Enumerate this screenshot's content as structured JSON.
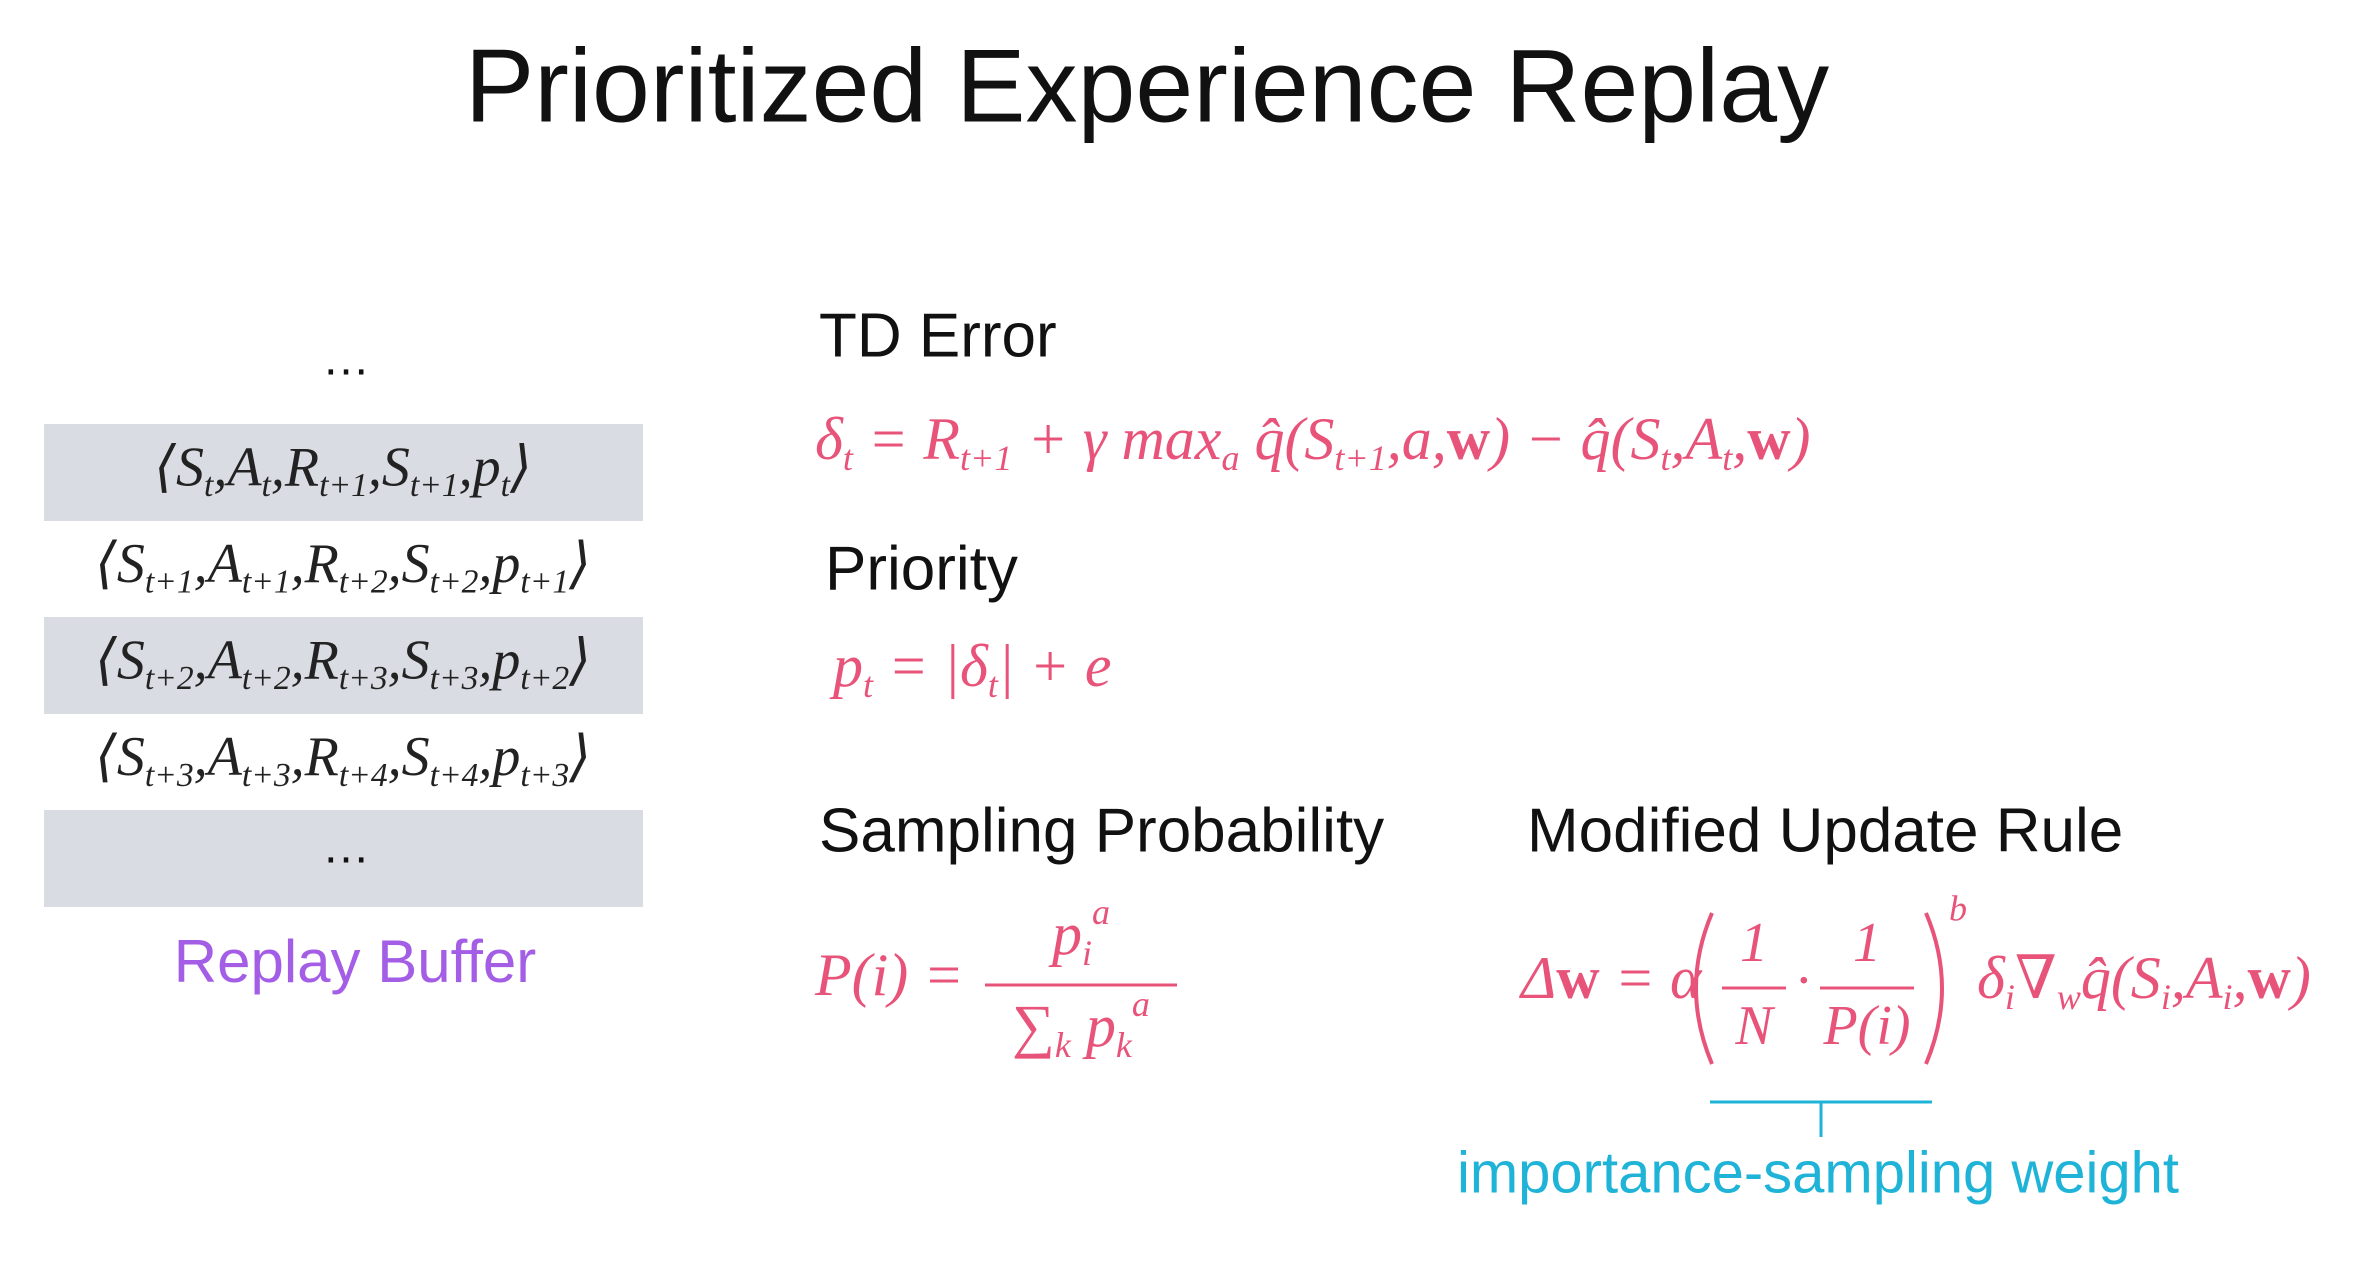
{
  "title": "Prioritized Experience Replay",
  "buffer": {
    "dots_top": "…",
    "rows": [
      [
        {
          "text": "⟨S",
          "sub": "t"
        },
        {
          "text": ",A",
          "sub": "t"
        },
        {
          "text": ",R",
          "sub": "t+1"
        },
        {
          "text": ",S",
          "sub": "t+1"
        },
        {
          "text": ",p",
          "sub": "t"
        },
        {
          "text": "⟩"
        }
      ],
      [
        {
          "text": "⟨S",
          "sub": "t+1"
        },
        {
          "text": ",A",
          "sub": "t+1"
        },
        {
          "text": ",R",
          "sub": "t+2"
        },
        {
          "text": ",S",
          "sub": "t+2"
        },
        {
          "text": ",p",
          "sub": "t+1"
        },
        {
          "text": "⟩"
        }
      ],
      [
        {
          "text": "⟨S",
          "sub": "t+2"
        },
        {
          "text": ",A",
          "sub": "t+2"
        },
        {
          "text": ",R",
          "sub": "t+3"
        },
        {
          "text": ",S",
          "sub": "t+3"
        },
        {
          "text": ",p",
          "sub": "t+2"
        },
        {
          "text": "⟩"
        }
      ],
      [
        {
          "text": "⟨S",
          "sub": "t+3"
        },
        {
          "text": ",A",
          "sub": "t+3"
        },
        {
          "text": ",R",
          "sub": "t+4"
        },
        {
          "text": ",S",
          "sub": "t+4"
        },
        {
          "text": ",p",
          "sub": "t+3"
        },
        {
          "text": "⟩"
        }
      ]
    ],
    "last_row": "…",
    "label": "Replay Buffer"
  },
  "td_error": {
    "heading": "TD Error",
    "formula": [
      {
        "text": "δ",
        "sub": "t"
      },
      {
        "text": " = R",
        "sub": "t+1"
      },
      {
        "text": " + γ max",
        "sub": "a"
      },
      {
        "text": " q̂(S",
        "sub": "t+1"
      },
      {
        "text": ",a,"
      },
      {
        "text": "w",
        "bold": true
      },
      {
        "text": ") − q̂(S",
        "sub": "t"
      },
      {
        "text": ",A",
        "sub": "t"
      },
      {
        "text": ","
      },
      {
        "text": "w",
        "bold": true
      },
      {
        "text": ")"
      }
    ]
  },
  "priority": {
    "heading": "Priority",
    "formula": [
      {
        "text": "p",
        "sub": "t"
      },
      {
        "text": " = |δ",
        "sub": "t"
      },
      {
        "text": "| + e"
      }
    ]
  },
  "sampling": {
    "heading": "Sampling Probability",
    "lhs": [
      {
        "text": "P(i) ="
      }
    ],
    "numerator": [
      {
        "text": "p",
        "sub": "i",
        "sup": "a"
      }
    ],
    "denominator": [
      {
        "text": "∑",
        "sub": "k"
      },
      {
        "text": " p",
        "sub": "k",
        "sup": "a"
      }
    ]
  },
  "update": {
    "heading": "Modified Update Rule",
    "lhs": [
      {
        "text": "Δ"
      },
      {
        "text": "w",
        "bold": true
      },
      {
        "text": " = α"
      }
    ],
    "numerator_1": "1",
    "denominator_1": "N",
    "dot": "·",
    "numerator_2": "1",
    "denominator_2": "P(i)",
    "exponent": "b",
    "rhs": [
      {
        "text": "δ",
        "sub": "i"
      },
      {
        "text": "∇",
        "sub": "w"
      },
      {
        "text": "q̂(S",
        "sub": "i"
      },
      {
        "text": ",A",
        "sub": "i"
      },
      {
        "text": ","
      },
      {
        "text": "w",
        "bold": true
      },
      {
        "text": ")"
      }
    ],
    "label": "importance-sampling weight"
  }
}
